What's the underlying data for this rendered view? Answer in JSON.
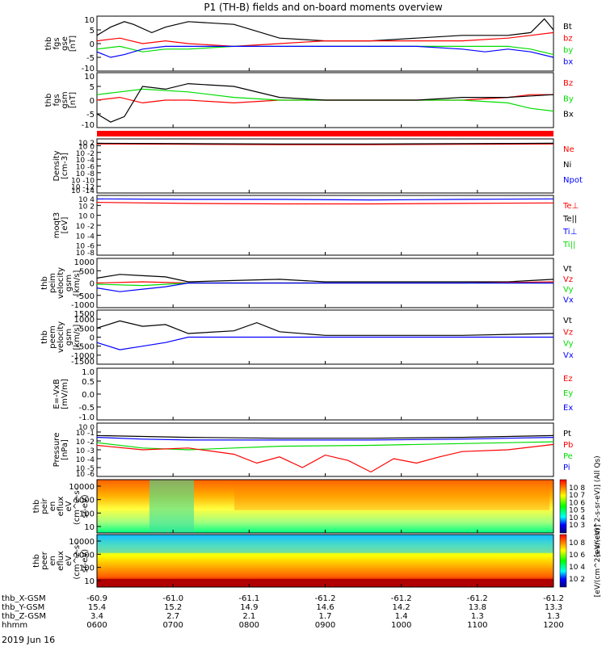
{
  "title": "P1 (TH-B) fields and on-board moments overview",
  "colors": {
    "black": "#000000",
    "red": "#ff0000",
    "green": "#00dd00",
    "blue": "#0000ff",
    "red_bar": "#ff0000"
  },
  "chart_data": [
    {
      "type": "line",
      "panel": "fgs-gse",
      "ylabel": [
        "thb",
        "fgs",
        "gse",
        "[nT]"
      ],
      "yticks": [
        "10",
        "5",
        "0",
        "-5",
        "-10"
      ],
      "ylim": [
        -10,
        10
      ],
      "legend": [
        {
          "label": "Bt",
          "color": "black"
        },
        {
          "label": "bz",
          "color": "red"
        },
        {
          "label": "by",
          "color": "green"
        },
        {
          "label": "bx",
          "color": "blue"
        }
      ],
      "series": [
        {
          "name": "Bt",
          "color": "black",
          "x": [
            0,
            0.03,
            0.06,
            0.08,
            0.12,
            0.15,
            0.2,
            0.3,
            0.4,
            0.5,
            0.6,
            0.7,
            0.8,
            0.9,
            0.95,
            0.98,
            1
          ],
          "y": [
            3,
            6,
            8,
            7,
            4,
            6,
            8,
            7,
            2,
            1,
            1,
            2,
            3,
            3,
            4,
            9,
            5
          ]
        },
        {
          "name": "bz",
          "color": "red",
          "x": [
            0,
            0.05,
            0.1,
            0.15,
            0.2,
            0.3,
            0.4,
            0.5,
            0.6,
            0.7,
            0.8,
            0.9,
            0.95,
            1
          ],
          "y": [
            1,
            2,
            0,
            1,
            0,
            -1,
            0,
            1,
            1,
            1,
            1,
            2,
            3,
            4
          ]
        },
        {
          "name": "by",
          "color": "green",
          "x": [
            0,
            0.05,
            0.1,
            0.15,
            0.2,
            0.3,
            0.4,
            0.5,
            0.6,
            0.7,
            0.8,
            0.9,
            0.95,
            1
          ],
          "y": [
            -2,
            -1,
            -3,
            -2,
            -2,
            -1,
            -1,
            -1,
            -1,
            -1,
            -1,
            -1,
            -2,
            -4
          ]
        },
        {
          "name": "bx",
          "color": "blue",
          "x": [
            0,
            0.03,
            0.06,
            0.1,
            0.15,
            0.2,
            0.3,
            0.5,
            0.7,
            0.8,
            0.85,
            0.9,
            0.95,
            1
          ],
          "y": [
            -3,
            -5,
            -4,
            -2,
            -1,
            -1,
            -1,
            -1,
            -1,
            -2,
            -3,
            -2,
            -3,
            -5
          ]
        }
      ]
    },
    {
      "type": "line",
      "panel": "fgs-gsm",
      "ylabel": [
        "thb",
        "fgs",
        "gsm",
        "[nT]"
      ],
      "yticks": [
        "10",
        "5",
        "0",
        "-5",
        "-10"
      ],
      "ylim": [
        -10,
        10
      ],
      "legend": [
        {
          "label": "Bz",
          "color": "red"
        },
        {
          "label": "By",
          "color": "green"
        },
        {
          "label": "Bx",
          "color": "black"
        }
      ],
      "series": [
        {
          "name": "Bz",
          "color": "red",
          "x": [
            0,
            0.05,
            0.1,
            0.15,
            0.2,
            0.3,
            0.4,
            0.5,
            0.6,
            0.7,
            0.8,
            0.9,
            0.95,
            1
          ],
          "y": [
            0,
            1,
            -1,
            0,
            0,
            -1,
            0,
            0,
            0,
            0,
            0,
            1,
            2,
            2
          ]
        },
        {
          "name": "By",
          "color": "green",
          "x": [
            0,
            0.05,
            0.1,
            0.2,
            0.3,
            0.4,
            0.5,
            0.6,
            0.7,
            0.8,
            0.9,
            0.95,
            1
          ],
          "y": [
            2,
            3,
            4,
            3,
            1,
            0,
            0,
            0,
            0,
            0,
            -1,
            -3,
            -4
          ]
        },
        {
          "name": "Bx",
          "color": "black",
          "x": [
            0,
            0.03,
            0.06,
            0.1,
            0.15,
            0.2,
            0.3,
            0.4,
            0.5,
            0.6,
            0.7,
            0.8,
            0.9,
            1
          ],
          "y": [
            -5,
            -8,
            -6,
            5,
            4,
            6,
            5,
            1,
            0,
            0,
            0,
            1,
            1,
            2
          ]
        }
      ]
    },
    {
      "type": "bar",
      "panel": "status-bar",
      "note": "solid red band"
    },
    {
      "type": "line",
      "panel": "density",
      "ylabel": [
        "Density",
        "[cm-3]"
      ],
      "yticks": [
        "10^2",
        "10^0",
        "10^-2",
        "10^-4",
        "10^-6",
        "10^-8",
        "10^-10",
        "10^-12",
        "10^-14"
      ],
      "ylim": [
        -14,
        2
      ],
      "log": true,
      "legend": [
        {
          "label": "Ne",
          "color": "red"
        },
        {
          "label": "Ni",
          "color": "black"
        },
        {
          "label": "Npot",
          "color": "blue"
        }
      ],
      "series": [
        {
          "name": "Ne",
          "color": "red",
          "x": [
            0,
            0.2,
            0.4,
            0.6,
            0.8,
            1
          ],
          "y": [
            0.5,
            0.4,
            0.3,
            0.3,
            0.4,
            0.5
          ]
        },
        {
          "name": "Ni",
          "color": "black",
          "x": [
            0,
            0.2,
            0.4,
            0.6,
            0.8,
            1
          ],
          "y": [
            0.7,
            0.6,
            0.5,
            0.5,
            0.6,
            0.7
          ]
        }
      ]
    },
    {
      "type": "line",
      "panel": "temperature",
      "ylabel": [
        "moqt3",
        "[eV]"
      ],
      "yticks": [
        "10^4",
        "10^2",
        "10^0",
        "10^-2",
        "10^-4",
        "10^-6",
        "10^-8"
      ],
      "ylim": [
        -8,
        4
      ],
      "log": true,
      "legend": [
        {
          "label": "Te⊥",
          "color": "red"
        },
        {
          "label": "Te||",
          "color": "black"
        },
        {
          "label": "Ti⊥",
          "color": "blue"
        },
        {
          "label": "Ti||",
          "color": "green"
        }
      ],
      "series": [
        {
          "name": "Te⊥",
          "color": "red",
          "x": [
            0,
            0.2,
            0.4,
            0.6,
            0.8,
            1
          ],
          "y": [
            2.6,
            2.4,
            2.3,
            2.3,
            2.4,
            2.5
          ]
        },
        {
          "name": "Ti⊥",
          "color": "blue",
          "x": [
            0,
            0.2,
            0.4,
            0.6,
            0.8,
            1
          ],
          "y": [
            3.3,
            3.2,
            3.2,
            3.1,
            3.2,
            3.3
          ]
        }
      ]
    },
    {
      "type": "line",
      "panel": "peim-velocity",
      "ylabel": [
        "thb",
        "peim",
        "velocity",
        "gsm",
        "[km/s]"
      ],
      "yticks": [
        "1000",
        "500",
        "0",
        "-500",
        "-1000"
      ],
      "ylim": [
        -1000,
        1000
      ],
      "legend": [
        {
          "label": "Vt",
          "color": "black"
        },
        {
          "label": "Vz",
          "color": "red"
        },
        {
          "label": "Vy",
          "color": "green"
        },
        {
          "label": "Vx",
          "color": "blue"
        }
      ],
      "series": [
        {
          "name": "Vt",
          "color": "black",
          "x": [
            0,
            0.05,
            0.1,
            0.15,
            0.2,
            0.3,
            0.4,
            0.5,
            0.7,
            0.9,
            1
          ],
          "y": [
            200,
            350,
            300,
            250,
            50,
            100,
            150,
            50,
            50,
            50,
            150
          ]
        },
        {
          "name": "Vz",
          "color": "red",
          "x": [
            0,
            0.1,
            0.2,
            0.4,
            0.6,
            0.8,
            1
          ],
          "y": [
            0,
            50,
            0,
            0,
            0,
            0,
            50
          ]
        },
        {
          "name": "Vy",
          "color": "green",
          "x": [
            0,
            0.1,
            0.2,
            0.4,
            0.6,
            0.8,
            1
          ],
          "y": [
            -50,
            -100,
            0,
            0,
            0,
            0,
            0
          ]
        },
        {
          "name": "Vx",
          "color": "blue",
          "x": [
            0,
            0.05,
            0.1,
            0.15,
            0.2,
            0.4,
            0.6,
            0.8,
            1
          ],
          "y": [
            -200,
            -350,
            -250,
            -150,
            0,
            0,
            0,
            0,
            0
          ]
        }
      ]
    },
    {
      "type": "line",
      "panel": "peem-velocity",
      "ylabel": [
        "thb",
        "peem",
        "velocity",
        "gsm",
        "[km/s]"
      ],
      "yticks": [
        "1500",
        "1000",
        "500",
        "0",
        "-500",
        "-1000",
        "-1500"
      ],
      "ylim": [
        -1500,
        1500
      ],
      "legend": [
        {
          "label": "Vt",
          "color": "black"
        },
        {
          "label": "Vz",
          "color": "red"
        },
        {
          "label": "Vy",
          "color": "green"
        },
        {
          "label": "Vx",
          "color": "blue"
        }
      ],
      "series": [
        {
          "name": "Vt",
          "color": "black",
          "x": [
            0,
            0.05,
            0.1,
            0.15,
            0.2,
            0.3,
            0.35,
            0.4,
            0.5,
            0.6,
            0.8,
            1
          ],
          "y": [
            500,
            900,
            600,
            700,
            200,
            350,
            800,
            300,
            100,
            100,
            100,
            200
          ]
        },
        {
          "name": "Vx",
          "color": "blue",
          "x": [
            0,
            0.05,
            0.1,
            0.15,
            0.2,
            0.4,
            0.6,
            1
          ],
          "y": [
            -300,
            -700,
            -500,
            -300,
            0,
            0,
            0,
            0
          ]
        }
      ]
    },
    {
      "type": "line",
      "panel": "e-field",
      "ylabel": [
        "E=-VxB",
        "[mV/m]"
      ],
      "yticks": [
        "1.0",
        "0.5",
        "0.0",
        "-0.5",
        "-1.0"
      ],
      "ylim": [
        -1,
        1
      ],
      "legend": [
        {
          "label": "Ez",
          "color": "red"
        },
        {
          "label": "Ey",
          "color": "green"
        },
        {
          "label": "Ex",
          "color": "blue"
        }
      ],
      "series": []
    },
    {
      "type": "line",
      "panel": "pressure",
      "ylabel": [
        "Pressure",
        "[nPa]"
      ],
      "yticks": [
        "10^0",
        "10^-1",
        "10^-2",
        "10^-3",
        "10^-4",
        "10^-5",
        "10^-6"
      ],
      "ylim": [
        -6,
        0
      ],
      "log": true,
      "legend": [
        {
          "label": "Pt",
          "color": "black"
        },
        {
          "label": "Pb",
          "color": "red"
        },
        {
          "label": "Pe",
          "color": "green"
        },
        {
          "label": "Pi",
          "color": "blue"
        }
      ],
      "series": [
        {
          "name": "Pt",
          "color": "black",
          "x": [
            0,
            0.1,
            0.2,
            0.4,
            0.6,
            0.8,
            1
          ],
          "y": [
            -1.4,
            -1.5,
            -1.6,
            -1.7,
            -1.7,
            -1.6,
            -1.4
          ]
        },
        {
          "name": "Pi",
          "color": "blue",
          "x": [
            0,
            0.1,
            0.2,
            0.4,
            0.6,
            0.8,
            1
          ],
          "y": [
            -1.6,
            -1.8,
            -1.9,
            -1.9,
            -1.9,
            -1.8,
            -1.6
          ]
        },
        {
          "name": "Pe",
          "color": "green",
          "x": [
            0,
            0.1,
            0.2,
            0.3,
            0.4,
            0.6,
            0.8,
            1
          ],
          "y": [
            -2.2,
            -2.8,
            -3.0,
            -2.8,
            -2.6,
            -2.5,
            -2.3,
            -2.1
          ]
        },
        {
          "name": "Pb",
          "color": "red",
          "x": [
            0,
            0.1,
            0.2,
            0.3,
            0.35,
            0.4,
            0.45,
            0.5,
            0.55,
            0.6,
            0.65,
            0.7,
            0.75,
            0.8,
            0.9,
            1
          ],
          "y": [
            -2.5,
            -3.0,
            -2.8,
            -3.5,
            -4.5,
            -3.8,
            -5.0,
            -3.6,
            -4.2,
            -5.5,
            -4.0,
            -4.5,
            -3.8,
            -3.2,
            -3.0,
            -2.4
          ]
        }
      ]
    },
    {
      "type": "heatmap",
      "panel": "peir-eflux",
      "ylabel": [
        "thb",
        "peir",
        "en",
        "eflux",
        "eV",
        "(cm^2-s-",
        "sr-eV)"
      ],
      "yticks": [
        "10000",
        "1000",
        "100",
        "10"
      ],
      "colorbar_ticks": [
        "10^8",
        "10^7",
        "10^6",
        "10^5",
        "10^4",
        "10^3"
      ],
      "colorbar_label": "[eV/(cm^2-s-sr-eV)] (All Qs)"
    },
    {
      "type": "heatmap",
      "panel": "peer-eflux",
      "ylabel": [
        "thb",
        "peer",
        "en",
        "eflux",
        "eV",
        "(cm^2-s-",
        "sr-eV)"
      ],
      "yticks": [
        "10000",
        "1000",
        "100",
        "10"
      ],
      "colorbar_ticks": [
        "10^8",
        "10^6",
        "10^4",
        "10^2"
      ],
      "colorbar_label": "[eV/(cm^2-s-sr-eV)]"
    }
  ],
  "x_axis": {
    "rows": [
      {
        "label": "thb_X-GSM",
        "values": [
          "-60.9",
          "-61.0",
          "-61.1",
          "-61.2",
          "-61.2",
          "-61.2",
          "-61.2"
        ]
      },
      {
        "label": "thb_Y-GSM",
        "values": [
          "15.4",
          "15.2",
          "14.9",
          "14.6",
          "14.2",
          "13.8",
          "13.3"
        ]
      },
      {
        "label": "thb_Z-GSM",
        "values": [
          "3.4",
          "2.7",
          "2.1",
          "1.7",
          "1.4",
          "1.3",
          "1.3"
        ]
      },
      {
        "label": "hhmm",
        "values": [
          "0600",
          "0700",
          "0800",
          "0900",
          "1000",
          "1100",
          "1200"
        ]
      }
    ],
    "date": "2019 Jun 16"
  }
}
